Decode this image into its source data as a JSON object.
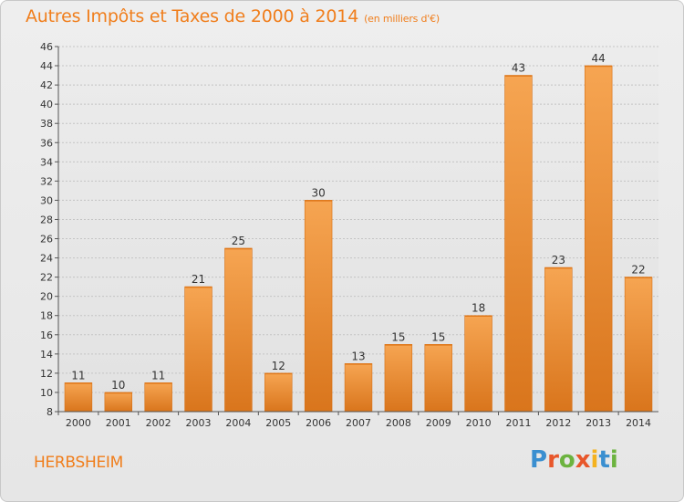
{
  "header": {
    "title": "Autres Impôts et Taxes de 2000 à 2014",
    "unit": "(en milliers d'€)"
  },
  "footer": {
    "commune": "HERBSHEIM",
    "logo": "Proxiti"
  },
  "colors": {
    "accent": "#f07e1c",
    "bar_top": "#f6a552",
    "bar_bottom": "#d9751c",
    "background": "#e9e9e9"
  },
  "chart_data": {
    "type": "bar",
    "title": "Autres Impôts et Taxes de 2000 à 2014",
    "ylabel": "",
    "xlabel": "",
    "categories": [
      "2000",
      "2001",
      "2002",
      "2003",
      "2004",
      "2005",
      "2006",
      "2007",
      "2008",
      "2009",
      "2010",
      "2011",
      "2012",
      "2013",
      "2014"
    ],
    "values": [
      11,
      10,
      11,
      21,
      25,
      12,
      30,
      13,
      15,
      15,
      18,
      43,
      23,
      44,
      22
    ],
    "ylim": [
      8,
      46
    ],
    "yticks": [
      8,
      10,
      12,
      14,
      16,
      18,
      20,
      22,
      24,
      26,
      28,
      30,
      32,
      34,
      36,
      38,
      40,
      42,
      44,
      46
    ],
    "grid": true,
    "legend": "none"
  }
}
